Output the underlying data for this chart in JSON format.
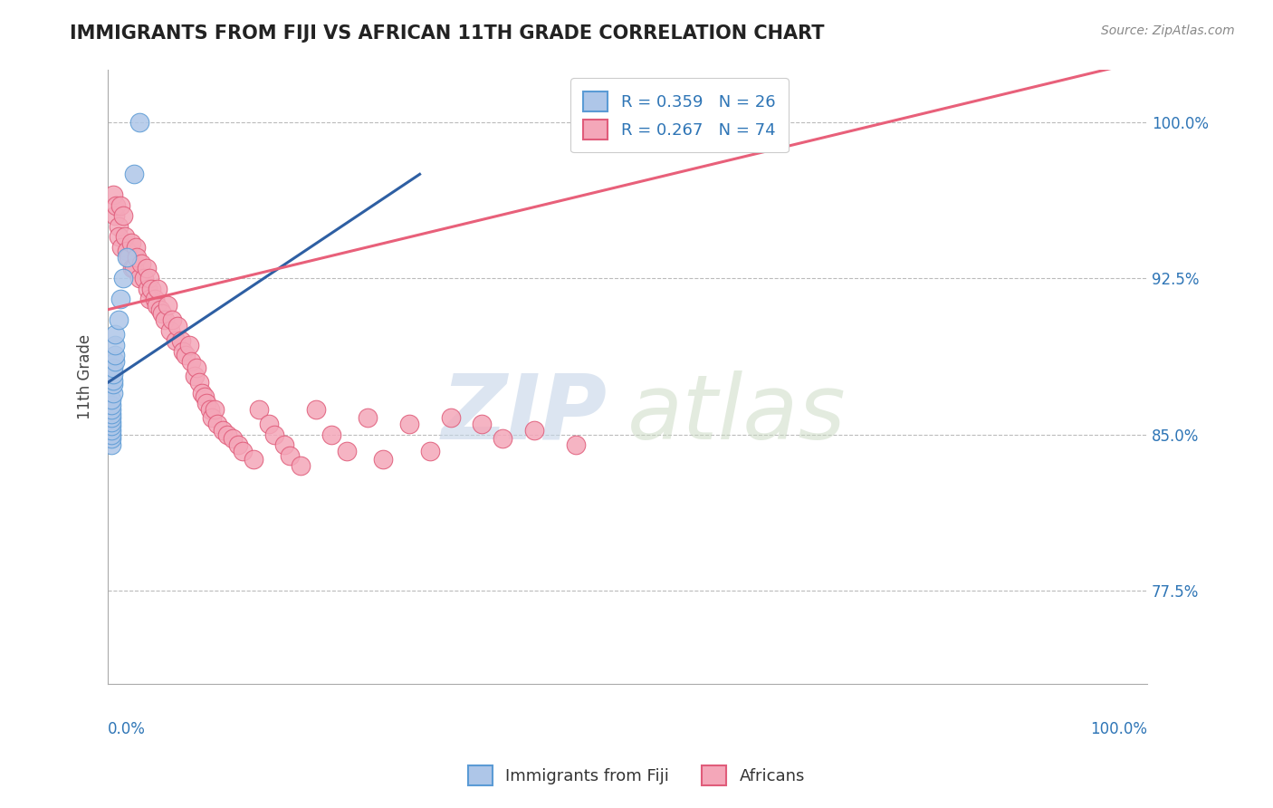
{
  "title": "IMMIGRANTS FROM FIJI VS AFRICAN 11TH GRADE CORRELATION CHART",
  "source": "Source: ZipAtlas.com",
  "ylabel": "11th Grade",
  "fiji_R": 0.359,
  "fiji_N": 26,
  "african_R": 0.267,
  "african_N": 74,
  "fiji_color": "#aec6e8",
  "fiji_edge_color": "#5b9bd5",
  "african_color": "#f4a7b9",
  "african_edge_color": "#e05c7a",
  "fiji_line_color": "#2e5fa3",
  "african_line_color": "#e8607a",
  "background_color": "#ffffff",
  "xlim": [
    0.0,
    1.0
  ],
  "ylim": [
    0.73,
    1.025
  ],
  "yticks": [
    0.775,
    0.85,
    0.925,
    1.0
  ],
  "ytick_labels": [
    "77.5%",
    "85.0%",
    "92.5%",
    "100.0%"
  ],
  "fiji_x": [
    0.003,
    0.003,
    0.003,
    0.003,
    0.003,
    0.003,
    0.003,
    0.003,
    0.003,
    0.003,
    0.003,
    0.005,
    0.005,
    0.005,
    0.005,
    0.005,
    0.007,
    0.007,
    0.007,
    0.007,
    0.01,
    0.012,
    0.015,
    0.018,
    0.025,
    0.03
  ],
  "fiji_y": [
    0.845,
    0.848,
    0.85,
    0.852,
    0.854,
    0.856,
    0.858,
    0.86,
    0.862,
    0.864,
    0.867,
    0.87,
    0.874,
    0.876,
    0.879,
    0.882,
    0.885,
    0.888,
    0.893,
    0.898,
    0.905,
    0.915,
    0.925,
    0.935,
    0.975,
    1.0
  ],
  "african_x": [
    0.005,
    0.007,
    0.008,
    0.01,
    0.01,
    0.012,
    0.013,
    0.015,
    0.016,
    0.018,
    0.02,
    0.022,
    0.023,
    0.025,
    0.027,
    0.028,
    0.03,
    0.032,
    0.035,
    0.037,
    0.038,
    0.04,
    0.04,
    0.042,
    0.045,
    0.047,
    0.048,
    0.05,
    0.052,
    0.055,
    0.057,
    0.06,
    0.062,
    0.065,
    0.067,
    0.07,
    0.072,
    0.075,
    0.078,
    0.08,
    0.083,
    0.085,
    0.088,
    0.09,
    0.093,
    0.095,
    0.098,
    0.1,
    0.103,
    0.105,
    0.11,
    0.115,
    0.12,
    0.125,
    0.13,
    0.14,
    0.145,
    0.155,
    0.16,
    0.17,
    0.175,
    0.185,
    0.2,
    0.215,
    0.23,
    0.25,
    0.265,
    0.29,
    0.31,
    0.33,
    0.36,
    0.38,
    0.41,
    0.45
  ],
  "african_y": [
    0.965,
    0.955,
    0.96,
    0.95,
    0.945,
    0.96,
    0.94,
    0.955,
    0.945,
    0.938,
    0.935,
    0.942,
    0.93,
    0.93,
    0.94,
    0.935,
    0.925,
    0.932,
    0.925,
    0.93,
    0.92,
    0.915,
    0.925,
    0.92,
    0.915,
    0.912,
    0.92,
    0.91,
    0.908,
    0.905,
    0.912,
    0.9,
    0.905,
    0.895,
    0.902,
    0.895,
    0.89,
    0.888,
    0.893,
    0.885,
    0.878,
    0.882,
    0.875,
    0.87,
    0.868,
    0.865,
    0.862,
    0.858,
    0.862,
    0.855,
    0.852,
    0.85,
    0.848,
    0.845,
    0.842,
    0.838,
    0.862,
    0.855,
    0.85,
    0.845,
    0.84,
    0.835,
    0.862,
    0.85,
    0.842,
    0.858,
    0.838,
    0.855,
    0.842,
    0.858,
    0.855,
    0.848,
    0.852,
    0.845
  ],
  "fiji_line_x": [
    0.0,
    0.3
  ],
  "fiji_line_y": [
    0.875,
    0.975
  ],
  "african_line_x": [
    0.0,
    1.0
  ],
  "african_line_y": [
    0.91,
    1.03
  ]
}
